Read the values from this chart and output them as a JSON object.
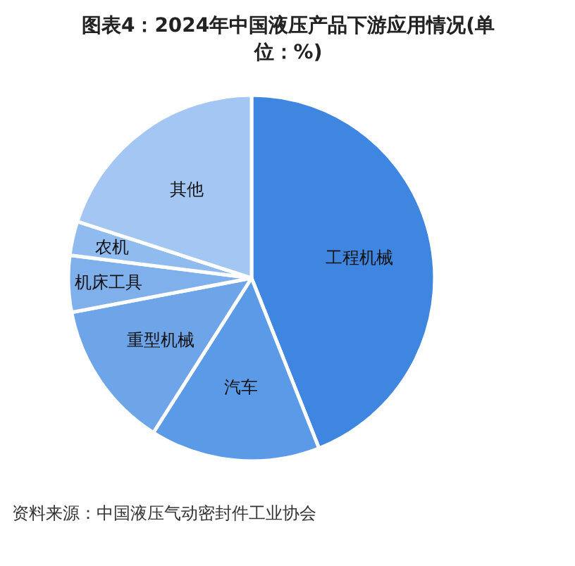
{
  "chart_data": {
    "type": "pie",
    "title": "图表4：2024年中国液压产品下游应用情况(单位：%)",
    "categories": [
      "工程机械",
      "汽车",
      "重型机械",
      "机床工具",
      "农机",
      "其他"
    ],
    "values": [
      44,
      15,
      13,
      5,
      3,
      20
    ],
    "colors": [
      "#3f86e0",
      "#5b9ae6",
      "#6ea5e9",
      "#7fb0ec",
      "#8fbbef",
      "#a3c7f2"
    ],
    "annotations": [
      "资料来源：中国液压气动密封件工业协会"
    ]
  }
}
